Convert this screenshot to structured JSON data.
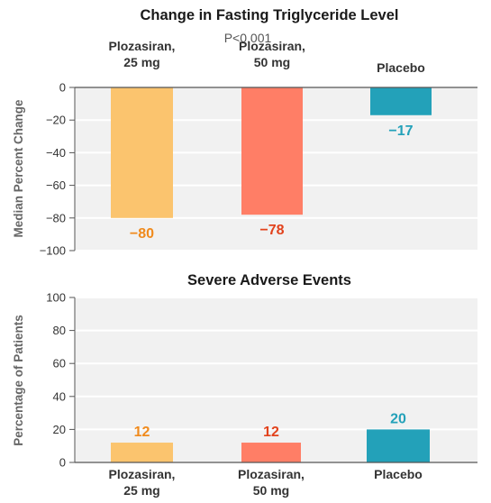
{
  "chart_data": [
    {
      "type": "bar",
      "title": "Change in Fasting Triglyceride Level",
      "subtitle": "P<0.001",
      "ylabel": "Median Percent Change",
      "xlabel": "",
      "categories": [
        "Plozasiran,\n25 mg",
        "Plozasiran,\n50 mg",
        "Placebo"
      ],
      "values": [
        -80,
        -78,
        -17
      ],
      "data_labels": [
        "−80",
        "−78",
        "−17"
      ],
      "ylim": [
        -100,
        0
      ],
      "yticks": [
        0,
        -20,
        -40,
        -60,
        -80,
        -100
      ],
      "ytick_labels": [
        "0",
        "−20",
        "−40",
        "−60",
        "−80",
        "−100"
      ],
      "category_label_position": "top",
      "grid": true,
      "colors": [
        "#fbc46e",
        "#ff7e66",
        "#23a1b9"
      ],
      "label_colors": [
        "#f08a1c",
        "#e2421c",
        "#23a1b9"
      ],
      "background": "#f1f1f1"
    },
    {
      "type": "bar",
      "title": "Severe Adverse Events",
      "ylabel": "Percentage of Patients",
      "xlabel": "",
      "categories": [
        "Plozasiran,\n25 mg",
        "Plozasiran,\n50 mg",
        "Placebo"
      ],
      "values": [
        12,
        12,
        20
      ],
      "data_labels": [
        "12",
        "12",
        "20"
      ],
      "ylim": [
        0,
        100
      ],
      "yticks": [
        0,
        20,
        40,
        60,
        80,
        100
      ],
      "ytick_labels": [
        "0",
        "20",
        "40",
        "60",
        "80",
        "100"
      ],
      "category_label_position": "bottom",
      "grid": true,
      "colors": [
        "#fbc46e",
        "#ff7e66",
        "#23a1b9"
      ],
      "label_colors": [
        "#f08a1c",
        "#e2421c",
        "#23a1b9"
      ],
      "background": "#f1f1f1"
    }
  ]
}
